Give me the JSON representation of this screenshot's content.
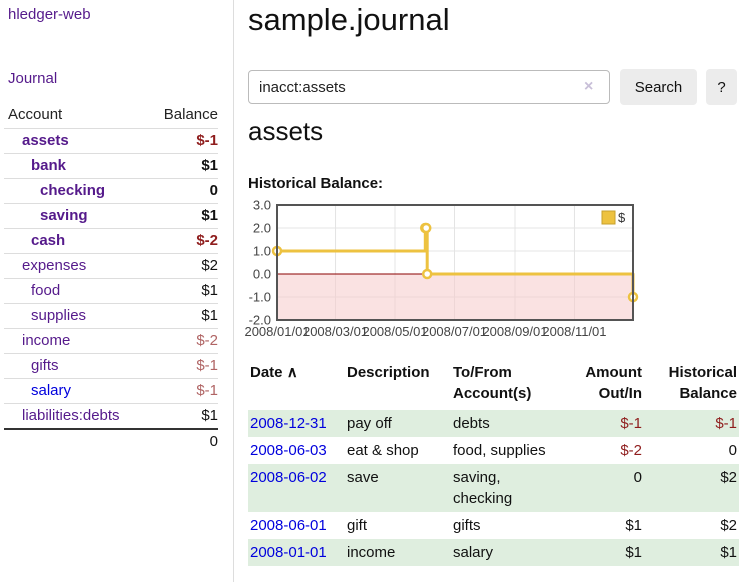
{
  "app": {
    "brand": "hledger-web"
  },
  "nav": {
    "journal": "Journal"
  },
  "colors": {
    "link_purple": "#551a8b",
    "link_blue": "#0000dd",
    "negative": "#8f1d1d",
    "negative_dim": "#b06464",
    "row_stripe_green": "#dfeedf",
    "chart_line": "#edc240",
    "chart_zero_line": "#8b0000",
    "chart_negative_region": "#f6caca"
  },
  "sidebar": {
    "columns": {
      "account": "Account",
      "balance": "Balance"
    },
    "accounts": [
      {
        "name": "assets",
        "balance": "$-1",
        "level": 1,
        "bold": true,
        "link_color": "purple",
        "balance_tone": "negative"
      },
      {
        "name": "bank",
        "balance": "$1",
        "level": 2,
        "bold": true,
        "link_color": "purple",
        "balance_tone": "plain"
      },
      {
        "name": "checking",
        "balance": "0",
        "level": 3,
        "bold": true,
        "link_color": "purple",
        "balance_tone": "plain"
      },
      {
        "name": "saving",
        "balance": "$1",
        "level": 3,
        "bold": true,
        "link_color": "purple",
        "balance_tone": "plain"
      },
      {
        "name": "cash",
        "balance": "$-2",
        "level": 2,
        "bold": true,
        "link_color": "purple",
        "balance_tone": "negative"
      },
      {
        "name": "expenses",
        "balance": "$2",
        "level": 1,
        "bold": false,
        "link_color": "purple",
        "balance_tone": "plain"
      },
      {
        "name": "food",
        "balance": "$1",
        "level": 2,
        "bold": false,
        "link_color": "purple",
        "balance_tone": "plain"
      },
      {
        "name": "supplies",
        "balance": "$1",
        "level": 2,
        "bold": false,
        "link_color": "purple",
        "balance_tone": "plain"
      },
      {
        "name": "income",
        "balance": "$-2",
        "level": 1,
        "bold": false,
        "link_color": "purple",
        "balance_tone": "negative-dim"
      },
      {
        "name": "gifts",
        "balance": "$-1",
        "level": 2,
        "bold": false,
        "link_color": "purple",
        "balance_tone": "negative-dim"
      },
      {
        "name": "salary",
        "balance": "$-1",
        "level": 2,
        "bold": false,
        "link_color": "blue",
        "balance_tone": "negative-dim"
      },
      {
        "name": "liabilities:debts",
        "balance": "$1",
        "level": 1,
        "bold": false,
        "link_color": "purple",
        "balance_tone": "plain"
      }
    ],
    "total": "0"
  },
  "main": {
    "title": "sample.journal",
    "account_heading": "assets",
    "chart_label": "Historical Balance:"
  },
  "search": {
    "value": "inacct:assets",
    "clear_icon": "×",
    "search_button": "Search",
    "help_button": "?"
  },
  "chart_data": {
    "type": "line",
    "title": "Historical Balance:",
    "step": true,
    "grid": true,
    "x_domain": [
      "2008-01-01",
      "2008-12-31"
    ],
    "ylim": [
      -2,
      3
    ],
    "y_ticks": [
      {
        "value": 3,
        "label": "3.0"
      },
      {
        "value": 2,
        "label": "2.0"
      },
      {
        "value": 1,
        "label": "1.0"
      },
      {
        "value": 0,
        "label": "0.0"
      },
      {
        "value": -1,
        "label": "-1.0"
      },
      {
        "value": -2,
        "label": "-2.0"
      }
    ],
    "x_ticks": [
      {
        "date": "2008-01-01",
        "label": "2008/01/01"
      },
      {
        "date": "2008-03-01",
        "label": "2008/03/01"
      },
      {
        "date": "2008-05-01",
        "label": "2008/05/01"
      },
      {
        "date": "2008-07-01",
        "label": "2008/07/01"
      },
      {
        "date": "2008-09-01",
        "label": "2008/09/01"
      },
      {
        "date": "2008-11-01",
        "label": "2008/11/01"
      }
    ],
    "series": [
      {
        "name": "$",
        "color": "#edc240",
        "points": [
          [
            "2008-01-01",
            1
          ],
          [
            "2008-06-01",
            2
          ],
          [
            "2008-06-02",
            2
          ],
          [
            "2008-06-03",
            0
          ],
          [
            "2008-12-31",
            -1
          ]
        ]
      }
    ],
    "legend": {
      "label": "$",
      "position": "top-right"
    },
    "zero_line_color": "#8b0000",
    "negative_region_color": "#f6caca"
  },
  "register": {
    "columns": {
      "date": "Date",
      "sort_indicator": "∧",
      "description": "Description",
      "accounts": "To/From Account(s)",
      "amount": "Amount Out/In",
      "balance": "Historical Balance"
    },
    "rows": [
      {
        "date": "2008-12-31",
        "description": "pay off",
        "accounts": "debts",
        "amount": "$-1",
        "amount_negative": true,
        "balance": "$-1",
        "balance_negative": true
      },
      {
        "date": "2008-06-03",
        "description": "eat & shop",
        "accounts": "food, supplies",
        "amount": "$-2",
        "amount_negative": true,
        "balance": "0",
        "balance_negative": false
      },
      {
        "date": "2008-06-02",
        "description": "save",
        "accounts": "saving, checking",
        "amount": "0",
        "amount_negative": false,
        "balance": "$2",
        "balance_negative": false
      },
      {
        "date": "2008-06-01",
        "description": "gift",
        "accounts": "gifts",
        "amount": "$1",
        "amount_negative": false,
        "balance": "$2",
        "balance_negative": false
      },
      {
        "date": "2008-01-01",
        "description": "income",
        "accounts": "salary",
        "amount": "$1",
        "amount_negative": false,
        "balance": "$1",
        "balance_negative": false
      }
    ]
  }
}
